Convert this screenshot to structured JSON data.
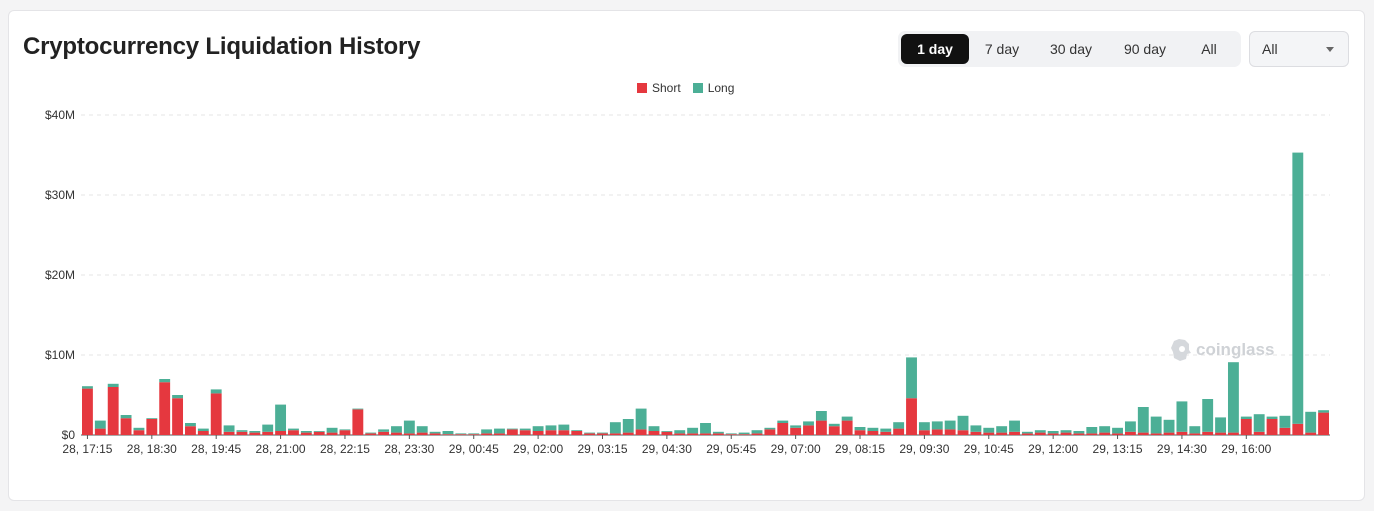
{
  "header": {
    "title": "Cryptocurrency Liquidation History"
  },
  "range_tabs": [
    {
      "label": "1 day",
      "active": true
    },
    {
      "label": "7 day",
      "active": false
    },
    {
      "label": "30 day",
      "active": false
    },
    {
      "label": "90 day",
      "active": false
    },
    {
      "label": "All",
      "active": false
    }
  ],
  "filter_select": {
    "value": "All"
  },
  "watermark": {
    "text": "coinglass",
    "icon": "coinglass-logo-icon"
  },
  "colors": {
    "short": "#e5383f",
    "long": "#4caf96",
    "grid": "#e6e6e6",
    "active_tab": "#111111"
  },
  "chart_data": {
    "type": "bar",
    "stacked": true,
    "legend": [
      "Short",
      "Long"
    ],
    "legend_position": "top-center",
    "y_ticks": [
      "$0",
      "$10M",
      "$20M",
      "$30M",
      "$40M"
    ],
    "ylim": [
      0,
      40
    ],
    "y_unit": "$M",
    "grid": true,
    "x_tick_labels": [
      "28, 17:15",
      "28, 18:30",
      "28, 19:45",
      "28, 21:00",
      "28, 22:15",
      "28, 23:30",
      "29, 00:45",
      "29, 02:00",
      "29, 03:15",
      "29, 04:30",
      "29, 05:45",
      "29, 07:00",
      "29, 08:15",
      "29, 09:30",
      "29, 10:45",
      "29, 12:00",
      "29, 13:15",
      "29, 14:30",
      "29, 16:00"
    ],
    "series": [
      {
        "name": "Short",
        "values": [
          5.8,
          0.8,
          6.0,
          2.1,
          0.6,
          2.0,
          6.6,
          4.6,
          1.1,
          0.5,
          5.2,
          0.4,
          0.4,
          0.3,
          0.4,
          0.5,
          0.6,
          0.3,
          0.4,
          0.3,
          0.6,
          3.2,
          0.2,
          0.4,
          0.3,
          0.2,
          0.3,
          0.2,
          0.1,
          0.1,
          0.1,
          0.2,
          0.2,
          0.7,
          0.6,
          0.5,
          0.6,
          0.6,
          0.5,
          0.2,
          0.2,
          0.2,
          0.3,
          0.7,
          0.5,
          0.4,
          0.2,
          0.2,
          0.2,
          0.2,
          0.1,
          0.1,
          0.2,
          0.7,
          1.5,
          0.9,
          1.2,
          1.8,
          1.1,
          1.8,
          0.6,
          0.5,
          0.4,
          0.8,
          4.6,
          0.6,
          0.7,
          0.7,
          0.6,
          0.4,
          0.3,
          0.3,
          0.4,
          0.2,
          0.3,
          0.2,
          0.3,
          0.2,
          0.2,
          0.3,
          0.2,
          0.4,
          0.3,
          0.2,
          0.3,
          0.4,
          0.2,
          0.4,
          0.3,
          0.3,
          2.0,
          0.4,
          2.0,
          0.9,
          1.4,
          0.3,
          2.8
        ]
      },
      {
        "name": "Long",
        "values": [
          0.3,
          1.0,
          0.4,
          0.4,
          0.3,
          0.1,
          0.4,
          0.4,
          0.4,
          0.3,
          0.5,
          0.8,
          0.2,
          0.2,
          0.9,
          3.3,
          0.2,
          0.2,
          0.1,
          0.6,
          0.1,
          0.1,
          0.1,
          0.3,
          0.8,
          1.6,
          0.8,
          0.2,
          0.4,
          0.1,
          0.1,
          0.5,
          0.6,
          0.1,
          0.2,
          0.6,
          0.6,
          0.7,
          0.1,
          0.1,
          0.1,
          1.4,
          1.7,
          2.6,
          0.6,
          0.1,
          0.4,
          0.7,
          1.3,
          0.2,
          0.1,
          0.2,
          0.4,
          0.2,
          0.3,
          0.3,
          0.5,
          1.2,
          0.3,
          0.5,
          0.4,
          0.4,
          0.4,
          0.8,
          5.1,
          1.0,
          1.0,
          1.1,
          1.8,
          0.8,
          0.6,
          0.8,
          1.4,
          0.2,
          0.3,
          0.3,
          0.3,
          0.3,
          0.8,
          0.8,
          0.7,
          1.3,
          3.2,
          2.1,
          1.6,
          3.8,
          0.9,
          4.1,
          1.9,
          8.8,
          0.3,
          2.2,
          0.3,
          1.5,
          33.9,
          2.6,
          0.3
        ]
      }
    ]
  }
}
